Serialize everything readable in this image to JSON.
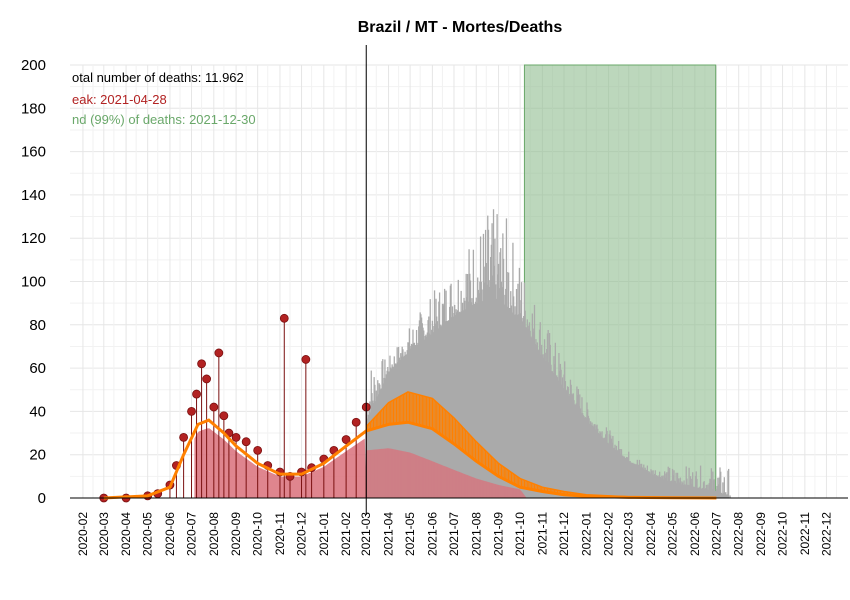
{
  "chart_data": {
    "type": "bar",
    "title": "Brazil / MT - Mortes/Deaths",
    "xlabel": "",
    "ylabel": "",
    "ylim": [
      0,
      200
    ],
    "y_ticks": [
      "0",
      "20",
      "40",
      "60",
      "80",
      "100",
      "120",
      "140",
      "160",
      "180",
      "200"
    ],
    "x_ticks": [
      "2020-02",
      "2020-03",
      "2020-04",
      "2020-05",
      "2020-06",
      "2020-07",
      "2020-08",
      "2020-09",
      "2020-10",
      "2020-11",
      "2020-12",
      "2021-01",
      "2021-02",
      "2021-03",
      "2021-04",
      "2021-05",
      "2021-06",
      "2021-07",
      "2021-08",
      "2021-09",
      "2021-10",
      "2021-11",
      "2021-12",
      "2022-01",
      "2022-02",
      "2022-03",
      "2022-04",
      "2022-05",
      "2022-06",
      "2022-07",
      "2022-08",
      "2022-09",
      "2022-10",
      "2022-11",
      "2022-12"
    ],
    "grid": true,
    "annotations": {
      "total": "otal number of deaths: 11.962",
      "peak": "eak: 2021-04-28",
      "end": "nd (99%) of deaths: 2021-12-30"
    },
    "today_line": "2021-03-01",
    "shaded_region": {
      "from": "2021-10-07",
      "to": "2022-06-30",
      "color": "#8fbc8f"
    },
    "colors": {
      "observed": "#b22222",
      "observed_fill": "#d9707a",
      "forecast_band": "#aaaaaa",
      "model": "#ff8000",
      "shade": "#8fbc8f"
    },
    "series": [
      {
        "name": "observed",
        "kind": "points",
        "x": [
          "2020-03-01",
          "2020-04-01",
          "2020-05-01",
          "2020-05-15",
          "2020-06-01",
          "2020-06-10",
          "2020-06-20",
          "2020-07-01",
          "2020-07-08",
          "2020-07-15",
          "2020-07-22",
          "2020-08-01",
          "2020-08-08",
          "2020-08-15",
          "2020-08-22",
          "2020-09-01",
          "2020-09-15",
          "2020-10-01",
          "2020-10-15",
          "2020-11-01",
          "2020-11-07",
          "2020-11-15",
          "2020-12-01",
          "2020-12-07",
          "2020-12-15",
          "2021-01-01",
          "2021-01-15",
          "2021-02-01",
          "2021-02-15",
          "2021-03-01"
        ],
        "values": [
          0,
          0,
          1,
          2,
          6,
          15,
          28,
          40,
          48,
          62,
          55,
          42,
          67,
          38,
          30,
          28,
          26,
          22,
          15,
          12,
          83,
          10,
          12,
          64,
          14,
          18,
          22,
          27,
          35,
          42
        ]
      },
      {
        "name": "model",
        "kind": "line",
        "x": [
          "2020-03-01",
          "2020-05-01",
          "2020-06-01",
          "2020-06-20",
          "2020-07-10",
          "2020-07-25",
          "2020-08-15",
          "2020-09-01",
          "2020-10-01",
          "2020-11-01",
          "2020-12-01",
          "2021-01-01",
          "2021-02-01",
          "2021-03-01",
          "2021-04-01",
          "2021-04-28",
          "2021-06-01",
          "2021-07-01",
          "2021-08-01",
          "2021-09-01",
          "2021-10-01",
          "2021-11-01",
          "2021-12-01",
          "2022-01-01",
          "2022-03-01",
          "2022-05-01",
          "2022-07-01"
        ],
        "values": [
          0,
          1,
          5,
          20,
          34,
          36,
          30,
          24,
          16,
          11,
          11,
          16,
          24,
          31,
          34,
          35,
          32,
          25,
          17,
          10,
          5,
          3,
          1.5,
          0.8,
          0.3,
          0.1,
          0
        ]
      },
      {
        "name": "model_upper",
        "kind": "band",
        "x": [
          "2021-03-01",
          "2021-04-01",
          "2021-04-28",
          "2021-06-01",
          "2021-07-01",
          "2021-08-01",
          "2021-09-01",
          "2021-10-01",
          "2021-11-01",
          "2021-12-01",
          "2022-01-01",
          "2022-03-01",
          "2022-05-01",
          "2022-07-01"
        ],
        "values": [
          33,
          44,
          49,
          46,
          37,
          26,
          16,
          9,
          5,
          3,
          1.5,
          0.6,
          0.2,
          0
        ]
      },
      {
        "name": "forecast",
        "kind": "area",
        "x": [
          "2021-03-01",
          "2021-04-01",
          "2021-05-01",
          "2021-06-01",
          "2021-07-01",
          "2021-08-01",
          "2021-09-01",
          "2021-10-07",
          "2021-11-01",
          "2021-12-01",
          "2022-01-01",
          "2022-02-01",
          "2022-03-01",
          "2022-04-01",
          "2022-05-01",
          "2022-06-01",
          "2022-07-01",
          "2022-07-20"
        ],
        "values": [
          35,
          58,
          68,
          76,
          84,
          90,
          92,
          80,
          65,
          50,
          36,
          25,
          17,
          11,
          7,
          5,
          3,
          0
        ]
      },
      {
        "name": "forecast_peaks",
        "kind": "spikes",
        "x": [
          "2021-04-01",
          "2021-05-01",
          "2021-06-01",
          "2021-07-01",
          "2021-08-01",
          "2021-08-20",
          "2021-09-10",
          "2021-10-07",
          "2021-11-01",
          "2021-12-01",
          "2022-01-01",
          "2022-02-01",
          "2022-03-01",
          "2022-04-01"
        ],
        "values": [
          65,
          80,
          95,
          108,
          125,
          135,
          132,
          105,
          85,
          65,
          45,
          32,
          22,
          15
        ]
      },
      {
        "name": "forecast_low",
        "kind": "area",
        "x": [
          "2021-03-01",
          "2021-04-01",
          "2021-05-01",
          "2021-06-01",
          "2021-07-01",
          "2021-08-01",
          "2021-09-01",
          "2021-10-01",
          "2021-10-10"
        ],
        "values": [
          22,
          23,
          21,
          17,
          13,
          9,
          6,
          4,
          0
        ]
      }
    ]
  }
}
